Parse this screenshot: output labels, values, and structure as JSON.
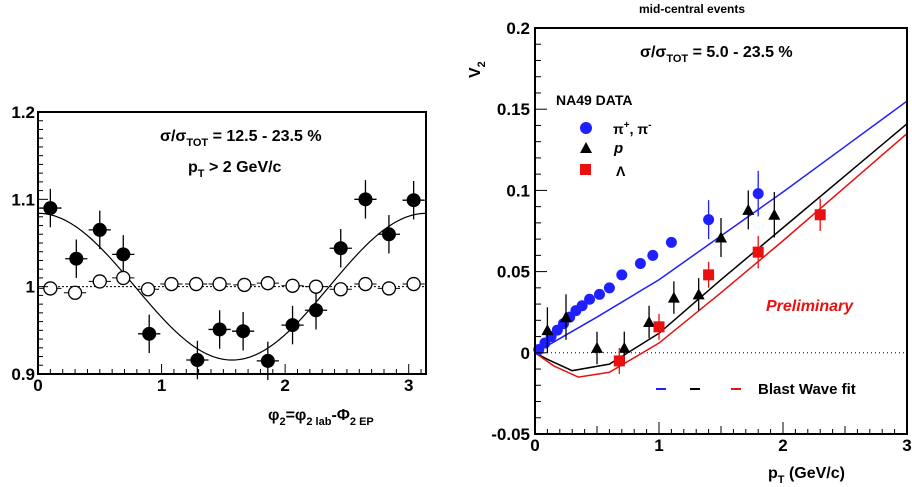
{
  "chart_data": [
    {
      "type": "scatter",
      "title": "",
      "xlabel": "φ2=φ2 lab-Φ2 EP",
      "ylabel": "",
      "xlim": [
        0,
        3.14
      ],
      "ylim": [
        0.9,
        1.2
      ],
      "x_ticks": [
        "0",
        "1",
        "2",
        "3"
      ],
      "y_ticks": [
        "0.9",
        "1",
        "1.1",
        "1.2"
      ],
      "annotations": {
        "line1": {
          "pre": "σ/σ",
          "sub": "TOT",
          "post": " = 12.5 - 23.5 %"
        },
        "line2": {
          "pre": "p",
          "sub": "T",
          "post": " > 2 GeV/c"
        }
      },
      "series": [
        {
          "marker": "filled-circle",
          "points": [
            {
              "x": 0.1,
              "y": 1.09,
              "yerr": 0.022
            },
            {
              "x": 0.31,
              "y": 1.032,
              "yerr": 0.022
            },
            {
              "x": 0.5,
              "y": 1.065,
              "yerr": 0.022
            },
            {
              "x": 0.69,
              "y": 1.037,
              "yerr": 0.022
            },
            {
              "x": 0.9,
              "y": 0.946,
              "yerr": 0.022
            },
            {
              "x": 1.29,
              "y": 0.916,
              "yerr": 0.022
            },
            {
              "x": 1.47,
              "y": 0.951,
              "yerr": 0.022
            },
            {
              "x": 1.66,
              "y": 0.949,
              "yerr": 0.022
            },
            {
              "x": 1.86,
              "y": 0.915,
              "yerr": 0.022
            },
            {
              "x": 2.06,
              "y": 0.956,
              "yerr": 0.022
            },
            {
              "x": 2.25,
              "y": 0.973,
              "yerr": 0.022
            },
            {
              "x": 2.45,
              "y": 1.044,
              "yerr": 0.022
            },
            {
              "x": 2.65,
              "y": 1.1,
              "yerr": 0.022
            },
            {
              "x": 2.84,
              "y": 1.06,
              "yerr": 0.022
            },
            {
              "x": 3.04,
              "y": 1.099,
              "yerr": 0.022
            }
          ]
        },
        {
          "marker": "open-circle",
          "points": [
            {
              "x": 0.1,
              "y": 0.998
            },
            {
              "x": 0.3,
              "y": 0.993
            },
            {
              "x": 0.5,
              "y": 1.006
            },
            {
              "x": 0.69,
              "y": 1.01
            },
            {
              "x": 0.89,
              "y": 0.997
            },
            {
              "x": 1.08,
              "y": 1.003
            },
            {
              "x": 1.28,
              "y": 1.003
            },
            {
              "x": 1.47,
              "y": 1.003
            },
            {
              "x": 1.67,
              "y": 1.002
            },
            {
              "x": 1.86,
              "y": 1.004
            },
            {
              "x": 2.06,
              "y": 1.001
            },
            {
              "x": 2.25,
              "y": 1.0
            },
            {
              "x": 2.45,
              "y": 0.997
            },
            {
              "x": 2.65,
              "y": 1.003
            },
            {
              "x": 2.84,
              "y": 0.998
            },
            {
              "x": 3.04,
              "y": 1.003
            }
          ]
        }
      ],
      "fit_curve": {
        "form": "1 + 2*v2*cos(2x)",
        "v2": 0.042
      },
      "reference_line": 1.0
    },
    {
      "type": "scatter",
      "title": "mid-central events",
      "xlabel": "p",
      "xlabel_sub": "T",
      "xlabel_post": " (GeV/c)",
      "ylabel": "V",
      "ylabel_sub": "2",
      "xlim": [
        0,
        3
      ],
      "ylim": [
        -0.05,
        0.2
      ],
      "x_ticks": [
        "0",
        "1",
        "2",
        "3"
      ],
      "y_ticks": [
        "-0.05",
        "0",
        "0.05",
        "0.1",
        "0.15",
        "0.2"
      ],
      "annotations": {
        "centrality": {
          "pre": "σ/σ",
          "sub": "TOT",
          "post": " = 5.0 - 23.5 %"
        },
        "data_label": "NA49 DATA",
        "preliminary": "Preliminary",
        "fit_legend": "Blast Wave fit"
      },
      "legend": [
        {
          "label": "π",
          "sup1": "+",
          "mid": ", π",
          "sup2": "-",
          "marker": "circle",
          "color": "#1f1fff"
        },
        {
          "label": "p",
          "marker": "triangle",
          "color": "#000000"
        },
        {
          "label": "Λ",
          "marker": "square",
          "color": "#e8110f"
        }
      ],
      "series": [
        {
          "name": "π+, π-",
          "color": "#1f1fff",
          "marker": "circle",
          "points": [
            {
              "x": 0.03,
              "y": 0.002
            },
            {
              "x": 0.08,
              "y": 0.006
            },
            {
              "x": 0.13,
              "y": 0.01
            },
            {
              "x": 0.18,
              "y": 0.014
            },
            {
              "x": 0.23,
              "y": 0.018
            },
            {
              "x": 0.28,
              "y": 0.022
            },
            {
              "x": 0.33,
              "y": 0.026
            },
            {
              "x": 0.38,
              "y": 0.029
            },
            {
              "x": 0.44,
              "y": 0.033
            },
            {
              "x": 0.52,
              "y": 0.036
            },
            {
              "x": 0.6,
              "y": 0.04
            },
            {
              "x": 0.7,
              "y": 0.048
            },
            {
              "x": 0.85,
              "y": 0.055
            },
            {
              "x": 0.95,
              "y": 0.06
            },
            {
              "x": 1.1,
              "y": 0.068
            },
            {
              "x": 1.4,
              "y": 0.082,
              "yerr": 0.012
            },
            {
              "x": 1.8,
              "y": 0.098,
              "yerr": 0.014
            }
          ]
        },
        {
          "name": "p",
          "color": "#000000",
          "marker": "triangle",
          "points": [
            {
              "x": 0.1,
              "y": 0.014,
              "yerr": 0.014
            },
            {
              "x": 0.25,
              "y": 0.022,
              "yerr": 0.014
            },
            {
              "x": 0.5,
              "y": 0.003,
              "yerr": 0.01
            },
            {
              "x": 0.72,
              "y": 0.003,
              "yerr": 0.01
            },
            {
              "x": 0.92,
              "y": 0.019,
              "yerr": 0.01
            },
            {
              "x": 1.12,
              "y": 0.034,
              "yerr": 0.01
            },
            {
              "x": 1.32,
              "y": 0.036,
              "yerr": 0.01
            },
            {
              "x": 1.5,
              "y": 0.071,
              "yerr": 0.012
            },
            {
              "x": 1.72,
              "y": 0.088,
              "yerr": 0.012
            },
            {
              "x": 1.93,
              "y": 0.085,
              "yerr": 0.014
            }
          ]
        },
        {
          "name": "Λ",
          "color": "#e8110f",
          "marker": "square",
          "points": [
            {
              "x": 0.68,
              "y": -0.005,
              "yerr": 0.008
            },
            {
              "x": 1.0,
              "y": 0.016,
              "yerr": 0.008
            },
            {
              "x": 1.4,
              "y": 0.048,
              "yerr": 0.008
            },
            {
              "x": 1.8,
              "y": 0.062,
              "yerr": 0.01
            },
            {
              "x": 2.3,
              "y": 0.085,
              "yerr": 0.01
            }
          ]
        }
      ],
      "fits": [
        {
          "color": "#1f1fff",
          "points": [
            [
              0,
              0
            ],
            [
              0.5,
              0.022
            ],
            [
              1,
              0.045
            ],
            [
              1.5,
              0.072
            ],
            [
              2,
              0.099
            ],
            [
              2.5,
              0.127
            ],
            [
              3,
              0.155
            ]
          ]
        },
        {
          "color": "#000000",
          "points": [
            [
              0,
              0
            ],
            [
              0.1,
              -0.004
            ],
            [
              0.3,
              -0.011
            ],
            [
              0.6,
              -0.007
            ],
            [
              1,
              0.012
            ],
            [
              1.5,
              0.045
            ],
            [
              2,
              0.077
            ],
            [
              2.5,
              0.109
            ],
            [
              3,
              0.141
            ]
          ]
        },
        {
          "color": "#e8110f",
          "points": [
            [
              0,
              0
            ],
            [
              0.15,
              -0.008
            ],
            [
              0.35,
              -0.015
            ],
            [
              0.6,
              -0.012
            ],
            [
              1,
              0.006
            ],
            [
              1.5,
              0.037
            ],
            [
              2,
              0.069
            ],
            [
              2.5,
              0.102
            ],
            [
              3,
              0.135
            ]
          ]
        }
      ],
      "reference_line": 0
    }
  ]
}
